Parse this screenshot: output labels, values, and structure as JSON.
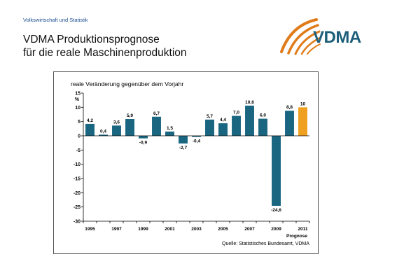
{
  "header": {
    "section_label": "Volkswirtschaft und Statistik",
    "title_line1": "VDMA Produktionsprognose",
    "title_line2": "für die reale Maschinenproduktion",
    "logo_text": "VDMA"
  },
  "colors": {
    "bar": "#1a6681",
    "forecast_bar": "#f0a020",
    "logo_arc": "#e07b1a",
    "logo_text": "#1d5f7a"
  },
  "chart_data": {
    "type": "bar",
    "title": "reale Veränderung gegenüber dem Vorjahr",
    "ylabel": "%",
    "ylim": [
      -30,
      15
    ],
    "yticks": [
      15,
      10,
      5,
      0,
      -5,
      -10,
      -15,
      -20,
      -25,
      -30
    ],
    "grid": false,
    "categories": [
      "1995",
      "1996",
      "1997",
      "1998",
      "1999",
      "2000",
      "2001",
      "2002",
      "2003",
      "2004",
      "2005",
      "2006",
      "2007",
      "2008",
      "2009",
      "2010",
      "2011"
    ],
    "xtick_labels": [
      "1995",
      "1997",
      "1999",
      "2001",
      "2003",
      "2005",
      "2007",
      "2009",
      "2011"
    ],
    "values": [
      4.2,
      0.4,
      3.6,
      5.9,
      -0.9,
      6.7,
      1.5,
      -2.7,
      -0.4,
      5.7,
      4.4,
      7.0,
      10.6,
      6.0,
      -24.6,
      8.8,
      10
    ],
    "data_labels": [
      "4,2",
      "0,4",
      "3,6",
      "5,9",
      "-0,9",
      "6,7",
      "1,5",
      "-2,7",
      "-0,4",
      "5,7",
      "4,4",
      "7,0",
      "10,6",
      "6,0",
      "-24,6",
      "8,8",
      "10"
    ],
    "forecast_categories": [
      "2011"
    ],
    "forecast_label": "Prognose",
    "source": "Quelle: Statistisches Bundesamt, VDMA"
  }
}
